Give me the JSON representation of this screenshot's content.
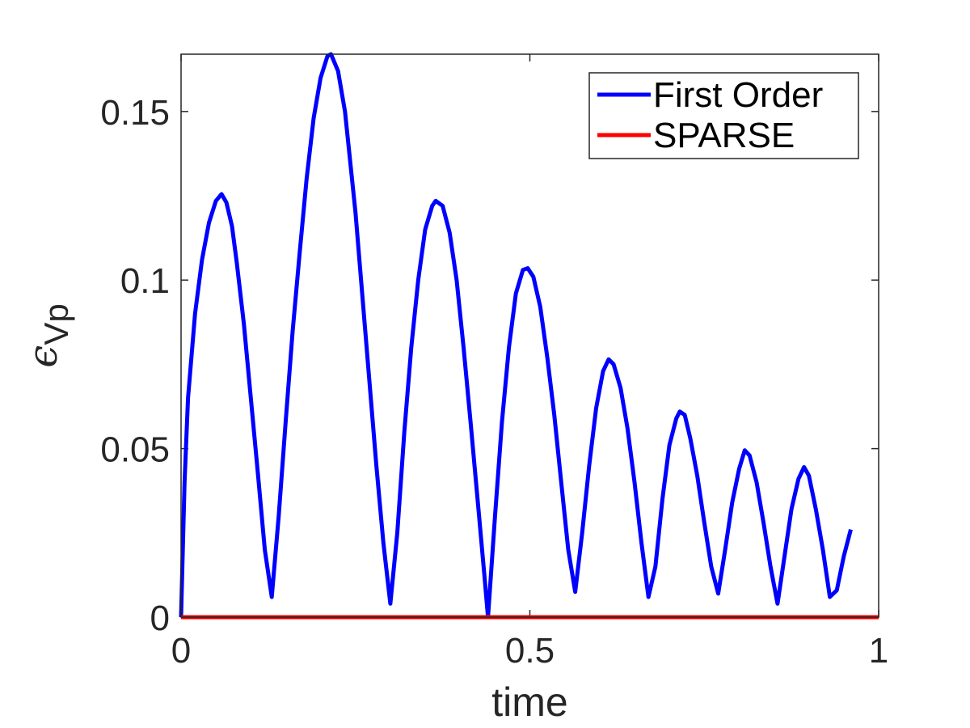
{
  "chart_data": {
    "type": "line",
    "xlabel": "time",
    "ylabel_symbol": "ϵ",
    "ylabel_subscript": "Vp",
    "xlim": [
      0,
      1
    ],
    "ylim": [
      0,
      0.167
    ],
    "x_ticks": [
      0,
      0.5,
      1
    ],
    "x_tick_labels": [
      "0",
      "0.5",
      "1"
    ],
    "y_ticks": [
      0,
      0.05,
      0.1,
      0.15
    ],
    "y_tick_labels": [
      "0",
      "0.05",
      "0.1",
      "0.15"
    ],
    "grid": false,
    "legend_placement": "top-right",
    "series": [
      {
        "name": "First Order",
        "color": "#0000ff",
        "points": [
          [
            0.0,
            0.0
          ],
          [
            0.005,
            0.04
          ],
          [
            0.01,
            0.065
          ],
          [
            0.02,
            0.09
          ],
          [
            0.03,
            0.106
          ],
          [
            0.04,
            0.117
          ],
          [
            0.05,
            0.1235
          ],
          [
            0.058,
            0.1255
          ],
          [
            0.065,
            0.123
          ],
          [
            0.073,
            0.116
          ],
          [
            0.08,
            0.105
          ],
          [
            0.09,
            0.087
          ],
          [
            0.1,
            0.065
          ],
          [
            0.11,
            0.043
          ],
          [
            0.12,
            0.02
          ],
          [
            0.13,
            0.006
          ],
          [
            0.14,
            0.03
          ],
          [
            0.15,
            0.058
          ],
          [
            0.16,
            0.085
          ],
          [
            0.17,
            0.108
          ],
          [
            0.18,
            0.13
          ],
          [
            0.19,
            0.148
          ],
          [
            0.2,
            0.16
          ],
          [
            0.21,
            0.1665
          ],
          [
            0.215,
            0.167
          ],
          [
            0.225,
            0.162
          ],
          [
            0.235,
            0.15
          ],
          [
            0.25,
            0.12
          ],
          [
            0.26,
            0.095
          ],
          [
            0.27,
            0.07
          ],
          [
            0.28,
            0.045
          ],
          [
            0.29,
            0.022
          ],
          [
            0.3,
            0.004
          ],
          [
            0.31,
            0.025
          ],
          [
            0.32,
            0.055
          ],
          [
            0.33,
            0.08
          ],
          [
            0.34,
            0.1
          ],
          [
            0.35,
            0.115
          ],
          [
            0.36,
            0.122
          ],
          [
            0.365,
            0.1235
          ],
          [
            0.375,
            0.122
          ],
          [
            0.385,
            0.114
          ],
          [
            0.395,
            0.1
          ],
          [
            0.405,
            0.08
          ],
          [
            0.415,
            0.058
          ],
          [
            0.425,
            0.035
          ],
          [
            0.435,
            0.012
          ],
          [
            0.44,
            0.0
          ],
          [
            0.45,
            0.03
          ],
          [
            0.46,
            0.058
          ],
          [
            0.47,
            0.08
          ],
          [
            0.48,
            0.096
          ],
          [
            0.49,
            0.103
          ],
          [
            0.497,
            0.1035
          ],
          [
            0.505,
            0.101
          ],
          [
            0.515,
            0.092
          ],
          [
            0.525,
            0.077
          ],
          [
            0.535,
            0.06
          ],
          [
            0.545,
            0.04
          ],
          [
            0.555,
            0.02
          ],
          [
            0.565,
            0.0075
          ],
          [
            0.575,
            0.025
          ],
          [
            0.585,
            0.045
          ],
          [
            0.595,
            0.062
          ],
          [
            0.605,
            0.073
          ],
          [
            0.613,
            0.0765
          ],
          [
            0.62,
            0.075
          ],
          [
            0.63,
            0.068
          ],
          [
            0.64,
            0.056
          ],
          [
            0.65,
            0.04
          ],
          [
            0.66,
            0.022
          ],
          [
            0.67,
            0.006
          ],
          [
            0.68,
            0.015
          ],
          [
            0.69,
            0.035
          ],
          [
            0.7,
            0.051
          ],
          [
            0.71,
            0.059
          ],
          [
            0.715,
            0.061
          ],
          [
            0.722,
            0.06
          ],
          [
            0.73,
            0.053
          ],
          [
            0.74,
            0.042
          ],
          [
            0.75,
            0.028
          ],
          [
            0.76,
            0.015
          ],
          [
            0.77,
            0.007
          ],
          [
            0.78,
            0.02
          ],
          [
            0.79,
            0.034
          ],
          [
            0.8,
            0.044
          ],
          [
            0.808,
            0.0495
          ],
          [
            0.815,
            0.048
          ],
          [
            0.825,
            0.04
          ],
          [
            0.835,
            0.028
          ],
          [
            0.845,
            0.015
          ],
          [
            0.855,
            0.004
          ],
          [
            0.865,
            0.018
          ],
          [
            0.875,
            0.032
          ],
          [
            0.885,
            0.041
          ],
          [
            0.893,
            0.0445
          ],
          [
            0.9,
            0.042
          ],
          [
            0.91,
            0.032
          ],
          [
            0.92,
            0.02
          ],
          [
            0.93,
            0.006
          ],
          [
            0.94,
            0.008
          ],
          [
            0.95,
            0.018
          ],
          [
            0.96,
            0.026
          ]
        ]
      },
      {
        "name": "SPARSE",
        "color": "#ff0000",
        "points": [
          [
            0.0,
            0.0
          ],
          [
            1.0,
            0.0
          ]
        ]
      }
    ]
  }
}
